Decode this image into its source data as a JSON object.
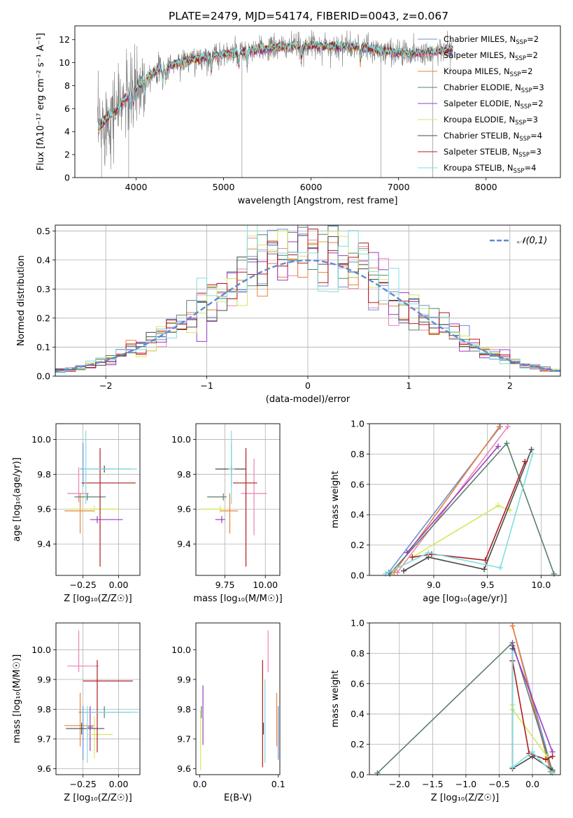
{
  "title": "PLATE=2479, MJD=54174, FIBERID=0043, z=0.067",
  "colors": {
    "chabrier_miles": "#6b8fd6",
    "salpeter_miles": "#ee82b5",
    "kroupa_miles": "#e8833a",
    "chabrier_elodie": "#5a806a",
    "salpeter_elodie": "#9a3cc0",
    "kroupa_elodie": "#d4e85a",
    "chabrier_stelib": "#4a4a4a",
    "salpeter_stelib": "#b01c1c",
    "kroupa_stelib": "#7fdde0",
    "data": "#7a7a7a"
  },
  "chart_data": [
    {
      "id": "spectrum",
      "type": "line",
      "title": "PLATE=2479, MJD=54174, FIBERID=0043, z=0.067",
      "xlabel": "wavelength [Angstrom, rest frame]",
      "ylabel": "Flux [fλ10⁻¹⁷ erg cm⁻² s⁻¹ A⁻¹]",
      "xlim": [
        3300,
        8850
      ],
      "ylim": [
        0,
        13.2
      ],
      "xticks": [
        4000,
        5000,
        6000,
        7000,
        8000
      ],
      "yticks": [
        0,
        2,
        4,
        6,
        8,
        10,
        12
      ],
      "grid": false,
      "legend_position": "right",
      "legend": [
        {
          "label": "Chabrier MILES, N",
          "sub": "SSP",
          "tail": "=2",
          "color": "chabrier_miles"
        },
        {
          "label": "Salpeter MILES, N",
          "sub": "SSP",
          "tail": "=2",
          "color": "salpeter_miles"
        },
        {
          "label": "Kroupa MILES, N",
          "sub": "SSP",
          "tail": "=2",
          "color": "kroupa_miles"
        },
        {
          "label": "Chabrier ELODIE, N",
          "sub": "SSP",
          "tail": "=3",
          "color": "chabrier_elodie"
        },
        {
          "label": "Salpeter ELODIE, N",
          "sub": "SSP",
          "tail": "=2",
          "color": "salpeter_elodie"
        },
        {
          "label": "Kroupa ELODIE, N",
          "sub": "SSP",
          "tail": "=3",
          "color": "kroupa_elodie"
        },
        {
          "label": "Chabrier STELIB, N",
          "sub": "SSP",
          "tail": "=4",
          "color": "chabrier_stelib"
        },
        {
          "label": "Salpeter STELIB, N",
          "sub": "SSP",
          "tail": "=3",
          "color": "salpeter_stelib"
        },
        {
          "label": "Kroupa STELIB, N",
          "sub": "SSP",
          "tail": "=4",
          "color": "kroupa_stelib"
        }
      ],
      "continuum": {
        "x": [
          3570,
          3650,
          3750,
          3850,
          3950,
          4050,
          4150,
          4250,
          4400,
          4600,
          4800,
          5000,
          5200,
          5400,
          5600,
          5800,
          6000,
          6200,
          6400,
          6600,
          6800,
          7000,
          7200,
          7400,
          7600
        ],
        "y": [
          4.2,
          5.0,
          5.8,
          6.6,
          7.4,
          8.2,
          8.9,
          9.4,
          9.8,
          10.2,
          10.5,
          10.7,
          10.9,
          11.1,
          11.3,
          11.4,
          11.5,
          11.4,
          11.4,
          11.3,
          11.0,
          10.9,
          10.8,
          10.9,
          11.2
        ]
      },
      "model_range": [
        3570,
        7620
      ],
      "data_range": [
        3560,
        7620
      ]
    },
    {
      "id": "residuals",
      "type": "bar",
      "xlabel": "(data-model)/error",
      "ylabel": "Normed distribution",
      "xlim": [
        -2.5,
        2.5
      ],
      "ylim": [
        0,
        0.52
      ],
      "xticks": [
        -2,
        -1,
        0,
        1,
        2
      ],
      "yticks": [
        0.0,
        0.1,
        0.2,
        0.3,
        0.4,
        0.5
      ],
      "grid": true,
      "bin_width": 0.1,
      "legend_position": "top-right",
      "gaussian_label": "𝒩(0,1)",
      "gaussian_color": "#5b8ad6"
    },
    {
      "id": "z_age",
      "type": "scatter",
      "xlabel": "Z [log₁₀(Z/Z☉)]",
      "ylabel": "age  [log₁₀(age/yr)]",
      "xlim": [
        -0.44,
        0.15
      ],
      "ylim": [
        9.22,
        10.09
      ],
      "xticks": [
        -0.25,
        0.0
      ],
      "yticks": [
        9.4,
        9.6,
        9.8,
        10.0
      ],
      "grid": true,
      "points": [
        {
          "series": "chabrier_miles",
          "x": -0.25,
          "y": 9.83,
          "xerr": [
            0.02,
            0.02
          ],
          "yerr": [
            0.1,
            0.15
          ]
        },
        {
          "series": "salpeter_miles",
          "x": -0.28,
          "y": 9.69,
          "xerr": [
            0.08,
            0.07
          ],
          "yerr": [
            0.05,
            0.15
          ]
        },
        {
          "series": "kroupa_miles",
          "x": -0.27,
          "y": 9.59,
          "xerr": [
            0.11,
            0.1
          ],
          "yerr": [
            0.13,
            0.1
          ]
        },
        {
          "series": "chabrier_elodie",
          "x": -0.22,
          "y": 9.67,
          "xerr": [
            0.09,
            0.13
          ],
          "yerr": [
            0.02,
            0.02
          ]
        },
        {
          "series": "salpeter_elodie",
          "x": -0.15,
          "y": 9.54,
          "xerr": [
            0.05,
            0.18
          ],
          "yerr": [
            0.02,
            0.02
          ]
        },
        {
          "series": "kroupa_elodie",
          "x": -0.17,
          "y": 9.6,
          "xerr": [
            0.18,
            0.18
          ],
          "yerr": [
            0.02,
            0.02
          ]
        },
        {
          "series": "chabrier_stelib",
          "x": -0.1,
          "y": 9.83,
          "xerr": [
            0.16,
            0.18
          ],
          "yerr": [
            0.02,
            0.02
          ]
        },
        {
          "series": "salpeter_stelib",
          "x": -0.13,
          "y": 9.75,
          "xerr": [
            0.13,
            0.25
          ],
          "yerr": [
            0.48,
            0.2
          ]
        },
        {
          "series": "kroupa_stelib",
          "x": -0.23,
          "y": 9.83,
          "xerr": [
            0.03,
            0.36
          ],
          "yerr": [
            0.2,
            0.22
          ]
        }
      ]
    },
    {
      "id": "mass_age",
      "type": "scatter",
      "xlabel": "mass [log₁₀(M/M☉)]",
      "ylabel": "",
      "xlim": [
        9.57,
        10.09
      ],
      "ylim": [
        9.22,
        10.09
      ],
      "xticks": [
        9.75,
        10.0
      ],
      "yticks": [
        9.4,
        9.6,
        9.8,
        10.0
      ],
      "grid": true,
      "points": [
        {
          "series": "chabrier_miles",
          "x": 9.79,
          "y": 9.83,
          "xerr": [
            0.02,
            0.02
          ],
          "yerr": [
            0.1,
            0.15
          ]
        },
        {
          "series": "salpeter_miles",
          "x": 9.93,
          "y": 9.69,
          "xerr": [
            0.08,
            0.08
          ],
          "yerr": [
            0.24,
            0.2
          ]
        },
        {
          "series": "kroupa_miles",
          "x": 9.78,
          "y": 9.59,
          "xerr": [
            0.06,
            0.05
          ],
          "yerr": [
            0.13,
            0.1
          ]
        },
        {
          "series": "chabrier_elodie",
          "x": 9.74,
          "y": 9.67,
          "xerr": [
            0.1,
            0.02
          ],
          "yerr": [
            0.02,
            0.02
          ]
        },
        {
          "series": "salpeter_elodie",
          "x": 9.73,
          "y": 9.54,
          "xerr": [
            0.04,
            0.02
          ],
          "yerr": [
            0.02,
            0.02
          ]
        },
        {
          "series": "kroupa_elodie",
          "x": 9.72,
          "y": 9.6,
          "xerr": [
            0.12,
            0.04
          ],
          "yerr": [
            0.02,
            0.02
          ]
        },
        {
          "series": "chabrier_stelib",
          "x": 9.79,
          "y": 9.83,
          "xerr": [
            0.1,
            0.09
          ],
          "yerr": [
            0.02,
            0.02
          ]
        },
        {
          "series": "salpeter_stelib",
          "x": 9.88,
          "y": 9.75,
          "xerr": [
            0.08,
            0.07
          ],
          "yerr": [
            0.48,
            0.2
          ]
        },
        {
          "series": "kroupa_stelib",
          "x": 9.79,
          "y": 9.83,
          "xerr": [
            0.02,
            0.02
          ],
          "yerr": [
            0.2,
            0.22
          ]
        }
      ]
    },
    {
      "id": "age_weight",
      "type": "line",
      "xlabel": "age  [log₁₀(age/yr)]",
      "ylabel": "mass weight",
      "xlim": [
        8.4,
        10.18
      ],
      "ylim": [
        0,
        1.0
      ],
      "xticks": [
        9.0,
        9.5,
        10.0
      ],
      "yticks": [
        0.0,
        0.2,
        0.4,
        0.6,
        0.8,
        1.0
      ],
      "grid": true,
      "series": [
        {
          "name": "chabrier_miles",
          "x": [
            8.58,
            9.62
          ],
          "y": [
            0.02,
            0.98
          ]
        },
        {
          "name": "salpeter_miles",
          "x": [
            8.66,
            9.69
          ],
          "y": [
            0.02,
            0.98
          ]
        },
        {
          "name": "kroupa_miles",
          "x": [
            8.63,
            9.61
          ],
          "y": [
            0.02,
            0.98
          ]
        },
        {
          "name": "chabrier_elodie",
          "x": [
            8.59,
            9.68,
            10.12
          ],
          "y": [
            0.01,
            0.87,
            0.01
          ]
        },
        {
          "name": "salpeter_elodie",
          "x": [
            8.75,
            9.6
          ],
          "y": [
            0.15,
            0.85
          ]
        },
        {
          "name": "kroupa_elodie",
          "x": [
            8.8,
            9.6,
            9.71
          ],
          "y": [
            0.12,
            0.46,
            0.43
          ]
        },
        {
          "name": "chabrier_stelib",
          "x": [
            8.72,
            8.95,
            9.47,
            9.91
          ],
          "y": [
            0.03,
            0.12,
            0.04,
            0.83
          ]
        },
        {
          "name": "salpeter_stelib",
          "x": [
            8.8,
            8.98,
            9.48,
            9.85
          ],
          "y": [
            0.12,
            0.14,
            0.1,
            0.75
          ]
        },
        {
          "name": "kroupa_stelib",
          "x": [
            8.55,
            8.95,
            9.62,
            9.92
          ],
          "y": [
            0.01,
            0.15,
            0.05,
            0.8
          ]
        }
      ]
    },
    {
      "id": "z_mass",
      "type": "scatter",
      "xlabel": "Z [log₁₀(Z/Z☉)]",
      "ylabel": "mass [log₁₀(M/M☉)]",
      "xlim": [
        -0.44,
        0.15
      ],
      "ylim": [
        9.58,
        10.09
      ],
      "xticks": [
        -0.25,
        0.0
      ],
      "yticks": [
        9.6,
        9.7,
        9.8,
        9.9,
        10.0
      ],
      "grid": true,
      "points": [
        {
          "series": "chabrier_miles",
          "x": -0.25,
          "y": 9.79,
          "xerr": [
            0.03,
            0.03
          ],
          "yerr": [
            0.16,
            0.02
          ]
        },
        {
          "series": "salpeter_miles",
          "x": -0.28,
          "y": 9.945,
          "xerr": [
            0.08,
            0.14
          ],
          "yerr": [
            0.02,
            0.12
          ]
        },
        {
          "series": "kroupa_miles",
          "x": -0.27,
          "y": 9.745,
          "xerr": [
            0.11,
            0.1
          ],
          "yerr": [
            0.07,
            0.11
          ]
        },
        {
          "series": "chabrier_elodie",
          "x": -0.1,
          "y": 9.79,
          "xerr": [
            0.16,
            0.18
          ],
          "yerr": [
            0.02,
            0.02
          ]
        },
        {
          "series": "salpeter_elodie",
          "x": -0.2,
          "y": 9.74,
          "xerr": [
            0.02,
            0.02
          ],
          "yerr": [
            0.08,
            0.07
          ]
        },
        {
          "series": "kroupa_elodie",
          "x": -0.17,
          "y": 9.715,
          "xerr": [
            0.05,
            0.13
          ],
          "yerr": [
            0.08,
            0.06
          ]
        },
        {
          "series": "chabrier_stelib",
          "x": -0.26,
          "y": 9.735,
          "xerr": [
            0.11,
            0.16
          ],
          "yerr": [
            0.02,
            0.02
          ]
        },
        {
          "series": "salpeter_stelib",
          "x": -0.15,
          "y": 9.895,
          "xerr": [
            0.1,
            0.25
          ],
          "yerr": [
            0.24,
            0.07
          ]
        },
        {
          "series": "kroupa_stelib",
          "x": -0.22,
          "y": 9.79,
          "xerr": [
            0.04,
            0.36
          ],
          "yerr": [
            0.17,
            0.02
          ]
        }
      ]
    },
    {
      "id": "ebv_mass",
      "type": "scatter",
      "xlabel": "E(B-V)",
      "ylabel": "",
      "xlim": [
        -0.005,
        0.102
      ],
      "ylim": [
        9.58,
        10.09
      ],
      "xticks": [
        0.0,
        0.1
      ],
      "yticks": [
        9.6,
        9.7,
        9.8,
        9.9,
        10.0
      ],
      "grid": false,
      "points": [
        {
          "series": "chabrier_miles",
          "x": 0.1,
          "y": 9.79,
          "yerr": [
            0.16,
            0.02
          ]
        },
        {
          "series": "salpeter_miles",
          "x": 0.087,
          "y": 9.945,
          "yerr": [
            0.02,
            0.12
          ]
        },
        {
          "series": "kroupa_miles",
          "x": 0.098,
          "y": 9.745,
          "yerr": [
            0.07,
            0.11
          ]
        },
        {
          "series": "chabrier_elodie",
          "x": 0.002,
          "y": 9.79,
          "yerr": [
            0.02,
            0.02
          ]
        },
        {
          "series": "salpeter_elodie",
          "x": 0.004,
          "y": 9.74,
          "yerr": [
            0.06,
            0.14
          ]
        },
        {
          "series": "kroupa_elodie",
          "x": 0.001,
          "y": 9.715,
          "yerr": [
            0.12,
            0.08
          ]
        },
        {
          "series": "chabrier_stelib",
          "x": 0.081,
          "y": 9.735,
          "yerr": [
            0.02,
            0.02
          ]
        },
        {
          "series": "salpeter_stelib",
          "x": 0.08,
          "y": 9.895,
          "yerr": [
            0.29,
            0.07
          ]
        },
        {
          "series": "kroupa_stelib",
          "x": 0.083,
          "y": 9.79,
          "yerr": [
            0.17,
            0.11
          ]
        }
      ]
    },
    {
      "id": "z_weight",
      "type": "line",
      "xlabel": "Z [log₁₀(Z/Z☉)]",
      "ylabel": "mass weight",
      "xlim": [
        -2.45,
        0.42
      ],
      "ylim": [
        0,
        1.0
      ],
      "xticks": [
        -2.0,
        -1.5,
        -1.0,
        -0.5,
        0.0
      ],
      "yticks": [
        0.0,
        0.2,
        0.4,
        0.6,
        0.8,
        1.0
      ],
      "grid": true,
      "series": [
        {
          "name": "chabrier_miles",
          "x": [
            -0.3,
            0.3
          ],
          "y": [
            0.98,
            0.02
          ]
        },
        {
          "name": "salpeter_miles",
          "x": [
            -0.3,
            0.28
          ],
          "y": [
            0.98,
            0.02
          ]
        },
        {
          "name": "kroupa_miles",
          "x": [
            -0.3,
            0.27
          ],
          "y": [
            0.98,
            0.02
          ]
        },
        {
          "name": "chabrier_elodie",
          "x": [
            -2.33,
            -0.3,
            0.3
          ],
          "y": [
            0.01,
            0.87,
            0.02
          ]
        },
        {
          "name": "salpeter_elodie",
          "x": [
            -0.3,
            0.3
          ],
          "y": [
            0.85,
            0.15
          ]
        },
        {
          "name": "kroupa_elodie",
          "x": [
            -0.3,
            -0.3,
            0.22
          ],
          "y": [
            0.46,
            0.43,
            0.12
          ]
        },
        {
          "name": "chabrier_stelib",
          "x": [
            -0.3,
            -0.3,
            0.0,
            0.3
          ],
          "y": [
            0.83,
            0.04,
            0.12,
            0.03
          ]
        },
        {
          "name": "salpeter_stelib",
          "x": [
            -0.3,
            -0.05,
            0.2,
            0.3
          ],
          "y": [
            0.75,
            0.14,
            0.1,
            0.12
          ]
        },
        {
          "name": "kroupa_stelib",
          "x": [
            -0.3,
            -0.3,
            0.0,
            0.3
          ],
          "y": [
            0.8,
            0.05,
            0.15,
            0.01
          ]
        }
      ]
    }
  ]
}
